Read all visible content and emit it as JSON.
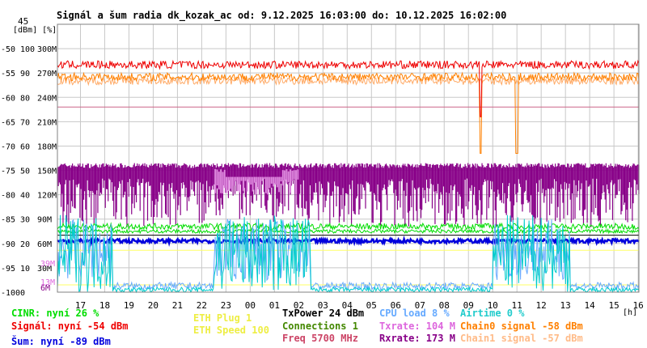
{
  "chart_data": {
    "type": "line",
    "title": "Signál a šum radia dk_kozak_ac od: 9.12.2025 16:03:00 do: 10.12.2025 16:02:00",
    "unit_header": "[dBm] [%]",
    "xlabel_unit": "[h]",
    "x_ticks": [
      "17",
      "18",
      "19",
      "20",
      "21",
      "22",
      "23",
      "00",
      "01",
      "02",
      "03",
      "04",
      "05",
      "06",
      "07",
      "08",
      "09",
      "10",
      "11",
      "12",
      "13",
      "14",
      "15",
      "16"
    ],
    "y_ticks": [
      {
        "dbm": "45",
        "pct": "",
        "rate": ""
      },
      {
        "dbm": "-50",
        "pct": "100",
        "rate": "300M"
      },
      {
        "dbm": "-55",
        "pct": "90",
        "rate": "270M"
      },
      {
        "dbm": "-60",
        "pct": "80",
        "rate": "240M"
      },
      {
        "dbm": "-65",
        "pct": "70",
        "rate": "210M"
      },
      {
        "dbm": "-70",
        "pct": "60",
        "rate": "180M"
      },
      {
        "dbm": "-75",
        "pct": "50",
        "rate": "150M"
      },
      {
        "dbm": "-80",
        "pct": "40",
        "rate": "120M"
      },
      {
        "dbm": "-85",
        "pct": "30",
        "rate": "90M"
      },
      {
        "dbm": "-90",
        "pct": "20",
        "rate": "60M"
      },
      {
        "dbm": "-95",
        "pct": "10",
        "rate": "30M"
      },
      {
        "dbm": "-100",
        "pct": "0",
        "rate": ""
      }
    ],
    "extra_y_labels": [
      {
        "text": "39M",
        "color": "#dd66dd",
        "dbm": -94.0
      },
      {
        "text": "13M",
        "color": "#dd66dd",
        "dbm": -97.8
      },
      {
        "text": "6M",
        "color": "#880088",
        "dbm": -99.0
      }
    ],
    "xlim_hours": [
      16.05,
      40.03
    ],
    "ylim_dbm": [
      -100,
      -45
    ],
    "series": [
      {
        "name": "Signál",
        "color": "#ee0000",
        "values": {
          "base": -53.3,
          "noise": 1.0
        }
      },
      {
        "name": "Chain0 signal",
        "color": "#ff8000",
        "values": {
          "base": -55.8,
          "noise": 1.0
        }
      },
      {
        "name": "Chain1 signal",
        "color": "#ffaa66",
        "values": {
          "base": -56.6,
          "noise": 1.0
        }
      },
      {
        "name": "Rxrate",
        "color": "#880088",
        "values": {
          "high": 156,
          "low": 120
        }
      },
      {
        "name": "Txrate",
        "color": "#dd88dd",
        "values": {
          "high": 150,
          "low": 120
        }
      },
      {
        "name": "CINR",
        "color": "#00dd00",
        "values": {
          "base": 27,
          "range": [
            25,
            30
          ]
        }
      },
      {
        "name": "Šum",
        "color": "#0000dd",
        "values": {
          "base": -89.5
        }
      },
      {
        "name": "CPU load",
        "color": "#66aaff",
        "values": {
          "base": 7,
          "range": [
            1,
            35
          ]
        }
      },
      {
        "name": "Airtime",
        "color": "#00cccc",
        "values": {
          "base": 2,
          "range": [
            0,
            35
          ]
        }
      },
      {
        "name": "ETH Speed",
        "color": "#dddd00",
        "values": {
          "level": 100
        }
      },
      {
        "name": "Freq",
        "color": "#cc6688",
        "values": {
          "level_dbm": -62.0
        }
      }
    ],
    "grid": true,
    "legend_position": "bottom"
  },
  "legend": [
    {
      "text": "CINR: nyní 26 %",
      "color": "#00dd00"
    },
    {
      "text": "Signál: nyní -54 dBm",
      "color": "#ee0000"
    },
    {
      "text": "Šum: nyní -89 dBm",
      "color": "#0000dd"
    },
    {
      "text": "ETH Plug 1",
      "color": "#eeee44"
    },
    {
      "text": "ETH Speed 100",
      "color": "#eeee44"
    },
    {
      "text": "TxPower 24 dBm",
      "color": "#000000"
    },
    {
      "text": "Connections 1",
      "color": "#448800"
    },
    {
      "text": "Freq 5700 MHz",
      "color": "#cc4466"
    },
    {
      "text": "CPU load 8 %",
      "color": "#66aaff"
    },
    {
      "text": "Txrate: 104 M",
      "color": "#dd66dd"
    },
    {
      "text": "Rxrate: 173 M",
      "color": "#880088"
    },
    {
      "text": "Airtime 0 %",
      "color": "#22cccc"
    },
    {
      "text": "Chain0 signal -58 dBm",
      "color": "#ff8000"
    },
    {
      "text": "Chain1 signal -57 dBm",
      "color": "#ffbb88"
    }
  ]
}
